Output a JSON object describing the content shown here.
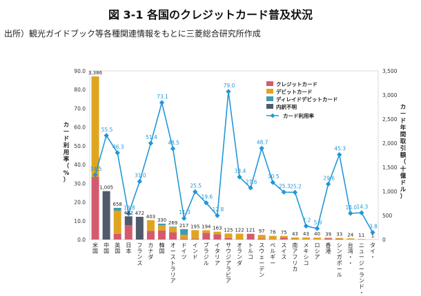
{
  "title": "図 3-1 各国のクレジットカード普及状況",
  "source": "出所）観光ガイドブック等各種関連情報をもとに三菱総合研究所作成",
  "chart_data": {
    "type": "bar",
    "stacked": true,
    "title": "図 3-1 各国のクレジットカード普及状況",
    "ylabel": "カード利用率（%）",
    "y2label": "カード年間取引額（十億ドル）",
    "ylim": [
      0,
      90
    ],
    "y2lim": [
      0,
      3500
    ],
    "yticks": [
      "0.0",
      "10.0",
      "20.0",
      "30.0",
      "40.0",
      "50.0",
      "60.0",
      "70.0",
      "80.0",
      "90.0"
    ],
    "y2ticks": [
      "0",
      "500",
      "1,000",
      "1,500",
      "2,000",
      "2,500",
      "3,000",
      "3,500"
    ],
    "categories": [
      "米国",
      "中国",
      "英国",
      "日本",
      "フランス",
      "カナダ",
      "韓国",
      "オーストラリア",
      "ドイツ",
      "インド",
      "ブラジル",
      "イタリア",
      "サウジアラビア",
      "オランダ",
      "トルコ",
      "スウェーデン",
      "ベルギー",
      "スイス",
      "南アフリカ",
      "メキシコ",
      "ロシア",
      "香港",
      "シンガポール",
      "台湾・・",
      "ニュージーランド・",
      "タイ・"
    ],
    "totals": [
      "3,386",
      "1,005",
      "658",
      "482",
      "472",
      "403",
      "330",
      "269",
      "217",
      "195",
      "194",
      "163",
      "125",
      "122",
      "121",
      "97",
      "76",
      "75",
      "43",
      "43",
      "40",
      "39",
      "33",
      "24",
      "11",
      "1"
    ],
    "series": [
      {
        "name": "クレジットカード",
        "color": "#d45b6e",
        "values": [
          1300,
          0,
          120,
          300,
          0,
          180,
          190,
          150,
          20,
          20,
          140,
          110,
          30,
          10,
          120,
          20,
          10,
          40,
          10,
          5,
          5,
          25,
          15,
          5,
          5,
          1
        ]
      },
      {
        "name": "デビットカード",
        "color": "#e0a520",
        "values": [
          2086,
          0,
          480,
          0,
          0,
          223,
          110,
          110,
          80,
          175,
          54,
          53,
          95,
          112,
          0,
          77,
          66,
          35,
          33,
          38,
          35,
          14,
          18,
          19,
          6,
          0
        ]
      },
      {
        "name": "ディレイドデビットカード",
        "color": "#3f9bb0",
        "values": [
          0,
          0,
          58,
          0,
          0,
          0,
          30,
          9,
          115,
          0,
          0,
          0,
          0,
          0,
          1,
          0,
          0,
          0,
          0,
          0,
          0,
          0,
          0,
          0,
          0,
          0
        ]
      },
      {
        "name": "内訳不明",
        "color": "#505a6b",
        "values": [
          0,
          1005,
          0,
          182,
          472,
          0,
          0,
          0,
          2,
          0,
          0,
          0,
          0,
          0,
          0,
          0,
          0,
          0,
          0,
          0,
          0,
          0,
          0,
          0,
          0,
          0
        ]
      }
    ],
    "line_series": {
      "name": "カード利用率",
      "color": "#1f97d8",
      "values": [
        34.5,
        55.5,
        46.3,
        13.8,
        31.0,
        51.4,
        73.1,
        48.5,
        11.3,
        25.5,
        19.6,
        12.8,
        79.0,
        33.4,
        27.6,
        48.7,
        30.5,
        25.3,
        25.2,
        7.2,
        5.9,
        29.6,
        45.3,
        14.0,
        14.3,
        3.8
      ],
      "labels": [
        "34.5",
        "55.5",
        "46.3",
        "13.8",
        "31.0",
        "51.4",
        "73.1",
        "48.5",
        "11.3",
        "25.5",
        "19.6",
        "12.8",
        "79.0",
        "33.4",
        "27.6",
        "48.7",
        "30.5",
        "25.3",
        "25.2",
        "7.2",
        "5.9",
        "29.6",
        "45.3",
        "14.0",
        "14.3",
        "3.8"
      ]
    },
    "legend_position": "top-right",
    "grid": false
  }
}
